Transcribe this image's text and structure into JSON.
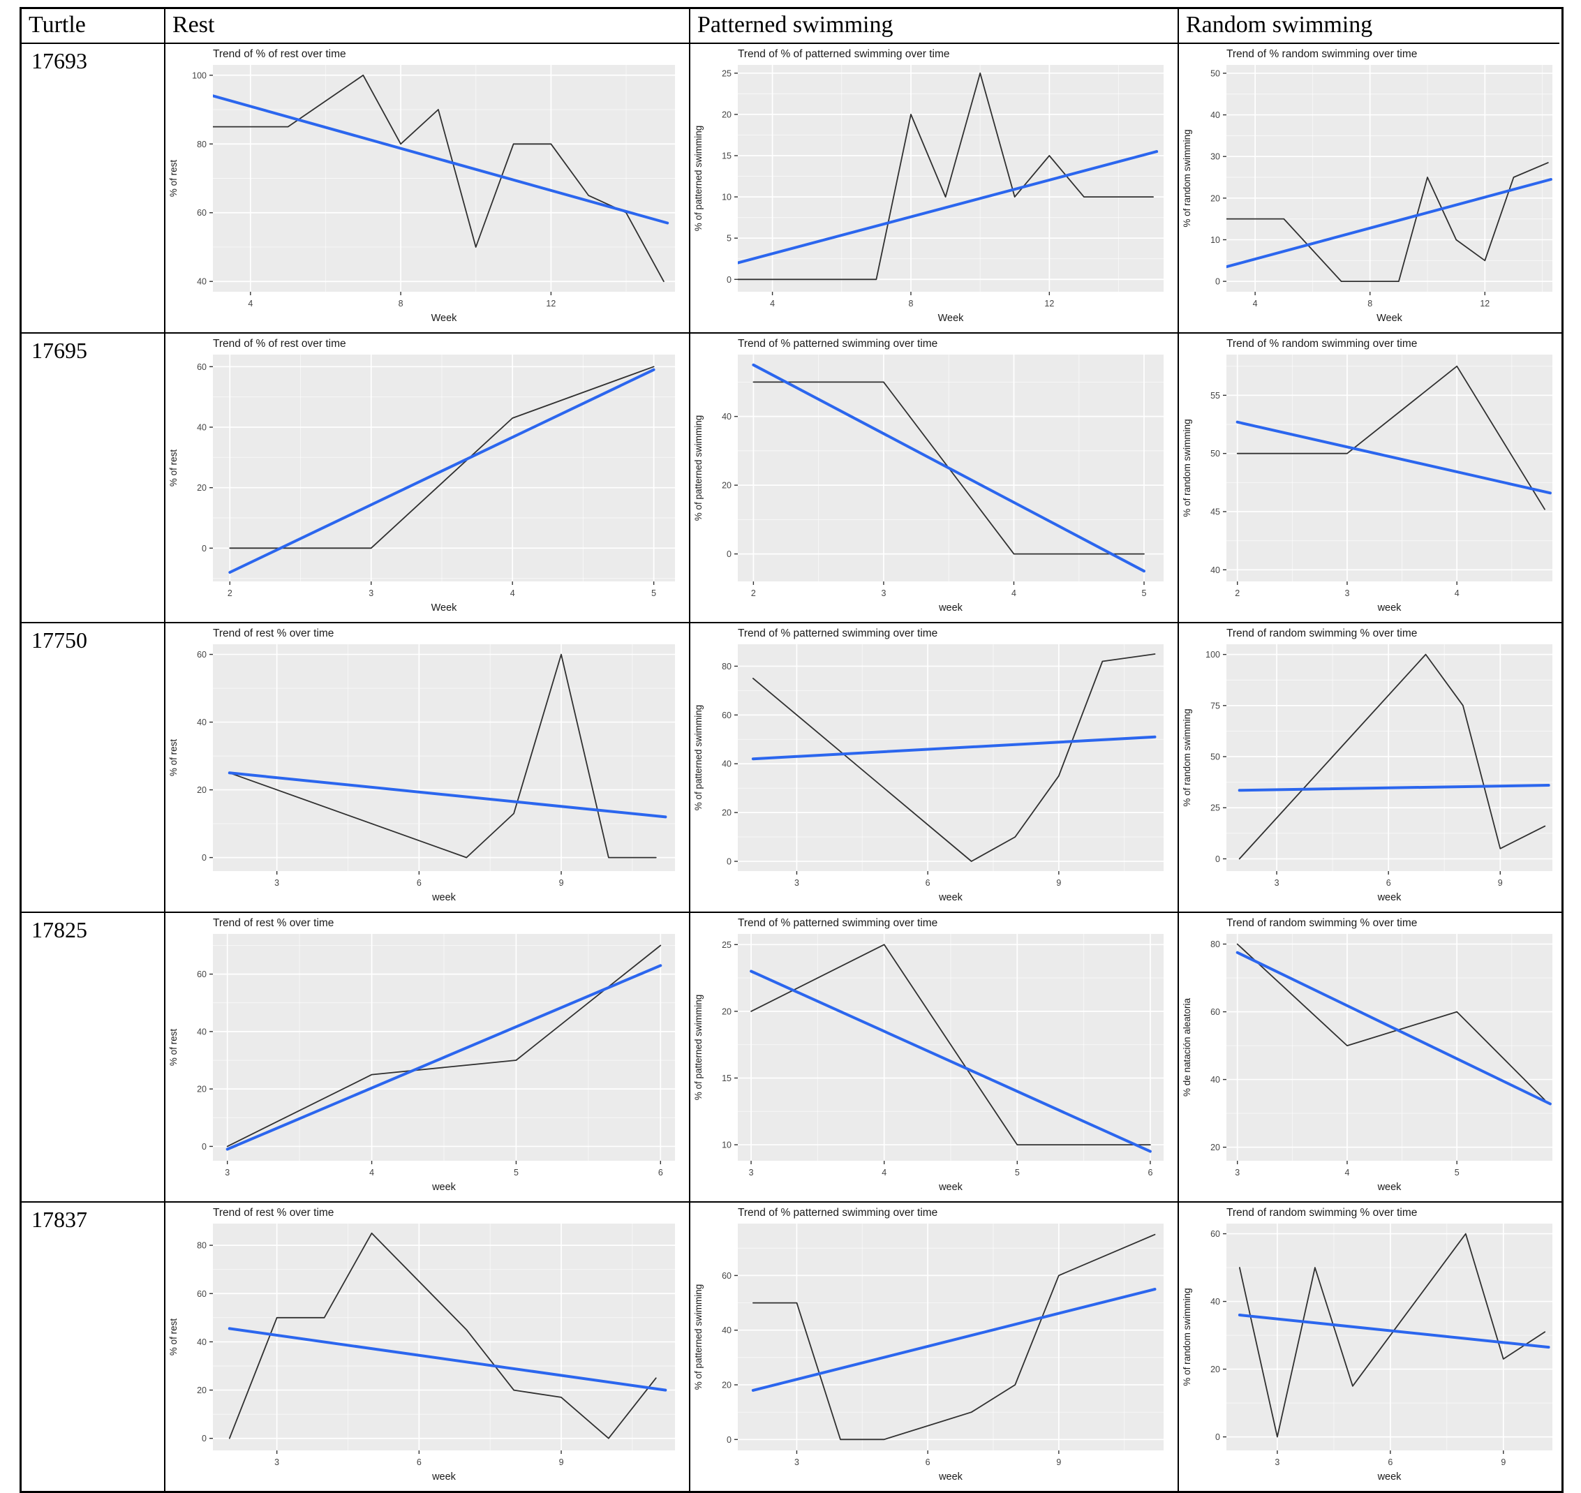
{
  "header": {
    "columns": [
      "Turtle",
      "Rest",
      "Patterned swimming",
      "Random swimming"
    ]
  },
  "colors": {
    "panel": "#ebebeb",
    "grid_major": "#ffffff",
    "grid_minor": "#f5f5f5",
    "data_line": "#303030",
    "trend_line": "#2b66ee",
    "border": "#000000",
    "title_text": "#1a1a1a",
    "tick_text": "#454545"
  },
  "chart_data": [
    {
      "turtle": "17693",
      "column": "Rest",
      "type": "line",
      "title": "Trend of % of rest over time",
      "xlabel": "Week",
      "ylabel": "% of rest",
      "xlim": [
        3,
        15.3
      ],
      "ylim": [
        37,
        103
      ],
      "xticks": [
        4,
        8,
        12
      ],
      "yticks": [
        40,
        60,
        80,
        100
      ],
      "series": [
        {
          "name": "observed",
          "color_key": "data_line",
          "x": [
            3,
            4,
            5,
            7,
            8,
            9,
            10,
            11,
            12,
            13,
            14,
            15
          ],
          "y": [
            85,
            85,
            85,
            100,
            80,
            90,
            50,
            80,
            80,
            65,
            60,
            40
          ]
        },
        {
          "name": "trend",
          "color_key": "trend_line",
          "x": [
            3,
            15.1
          ],
          "y": [
            94,
            57
          ]
        }
      ]
    },
    {
      "turtle": "17693",
      "column": "Patterned swimming",
      "type": "line",
      "title": "Trend of % of patterned swimming over time",
      "xlabel": "Week",
      "ylabel": "% of patterned swimming",
      "xlim": [
        3,
        15.3
      ],
      "ylim": [
        -1.5,
        26
      ],
      "xticks": [
        4,
        8,
        12
      ],
      "yticks": [
        0,
        5,
        10,
        15,
        20,
        25
      ],
      "series": [
        {
          "name": "observed",
          "color_key": "data_line",
          "x": [
            3,
            7,
            8,
            9,
            10,
            11,
            12,
            13,
            15
          ],
          "y": [
            0,
            0,
            20,
            10,
            25,
            10,
            15,
            10,
            10
          ]
        },
        {
          "name": "trend",
          "color_key": "trend_line",
          "x": [
            3,
            15.1
          ],
          "y": [
            2,
            15.5
          ]
        }
      ]
    },
    {
      "turtle": "17693",
      "column": "Random swimming",
      "type": "line",
      "title": "Trend of % random swimming over time",
      "xlabel": "Week",
      "ylabel": "% of random swimming",
      "xlim": [
        3,
        14.35
      ],
      "ylim": [
        -2.5,
        52
      ],
      "xticks": [
        4,
        8,
        12
      ],
      "yticks": [
        0,
        10,
        20,
        30,
        40,
        50
      ],
      "series": [
        {
          "name": "observed",
          "color_key": "data_line",
          "x": [
            3,
            5,
            7,
            9,
            10,
            11,
            12,
            13,
            14.2
          ],
          "y": [
            15,
            15,
            0,
            0,
            25,
            10,
            5,
            25,
            28.5
          ]
        },
        {
          "name": "trend",
          "color_key": "trend_line",
          "x": [
            3,
            14.3
          ],
          "y": [
            3.5,
            24.5
          ]
        }
      ]
    },
    {
      "turtle": "17695",
      "column": "Rest",
      "type": "line",
      "title": "Trend of % of rest over time",
      "xlabel": "Week",
      "ylabel": "% of rest",
      "xlim": [
        1.88,
        5.15
      ],
      "ylim": [
        -11,
        64
      ],
      "xticks": [
        2,
        3,
        4,
        5
      ],
      "yticks": [
        0,
        20,
        40,
        60
      ],
      "series": [
        {
          "name": "observed",
          "color_key": "data_line",
          "x": [
            2,
            3,
            4,
            5
          ],
          "y": [
            0,
            0,
            43,
            60
          ]
        },
        {
          "name": "trend",
          "color_key": "trend_line",
          "x": [
            2,
            5
          ],
          "y": [
            -8,
            59
          ]
        }
      ]
    },
    {
      "turtle": "17695",
      "column": "Patterned swimming",
      "type": "line",
      "title": "Trend of % patterned swimming over time",
      "xlabel": "week",
      "ylabel": "% of patterned swimming",
      "xlim": [
        1.88,
        5.15
      ],
      "ylim": [
        -8,
        58
      ],
      "xticks": [
        2,
        3,
        4,
        5
      ],
      "yticks": [
        0,
        20,
        40
      ],
      "series": [
        {
          "name": "observed",
          "color_key": "data_line",
          "x": [
            2,
            3,
            4,
            5
          ],
          "y": [
            50,
            50,
            0,
            0
          ]
        },
        {
          "name": "trend",
          "color_key": "trend_line",
          "x": [
            2,
            5
          ],
          "y": [
            55,
            -5
          ]
        }
      ]
    },
    {
      "turtle": "17695",
      "column": "Random swimming",
      "type": "line",
      "title": "Trend of % random swimming over time",
      "xlabel": "week",
      "ylabel": "% of random swimming",
      "xlim": [
        1.9,
        4.87
      ],
      "ylim": [
        39,
        58.5
      ],
      "xticks": [
        2,
        3,
        4
      ],
      "yticks": [
        40,
        45,
        50,
        55
      ],
      "series": [
        {
          "name": "observed",
          "color_key": "data_line",
          "x": [
            2,
            3,
            4,
            4.8
          ],
          "y": [
            50,
            50,
            57.5,
            45.2
          ]
        },
        {
          "name": "trend",
          "color_key": "trend_line",
          "x": [
            2,
            4.85
          ],
          "y": [
            52.7,
            46.6
          ]
        }
      ]
    },
    {
      "turtle": "17750",
      "column": "Rest",
      "type": "line",
      "title": "Trend of rest % over time",
      "xlabel": "week",
      "ylabel": "% of rest",
      "xlim": [
        1.65,
        11.4
      ],
      "ylim": [
        -4,
        63
      ],
      "xticks": [
        3,
        6,
        9
      ],
      "yticks": [
        0,
        20,
        40,
        60
      ],
      "series": [
        {
          "name": "observed",
          "color_key": "data_line",
          "x": [
            2,
            7,
            8,
            9,
            10,
            11
          ],
          "y": [
            25,
            0,
            13,
            60,
            0,
            0
          ]
        },
        {
          "name": "trend",
          "color_key": "trend_line",
          "x": [
            2,
            11.2
          ],
          "y": [
            25,
            12
          ]
        }
      ]
    },
    {
      "turtle": "17750",
      "column": "Patterned swimming",
      "type": "line",
      "title": "Trend of % patterned swimming over time",
      "xlabel": "week",
      "ylabel": "% of patterned swimming",
      "xlim": [
        1.65,
        11.4
      ],
      "ylim": [
        -4,
        89
      ],
      "xticks": [
        3,
        6,
        9
      ],
      "yticks": [
        0,
        20,
        40,
        60,
        80
      ],
      "series": [
        {
          "name": "observed",
          "color_key": "data_line",
          "x": [
            2,
            7,
            8,
            9,
            10,
            11.2
          ],
          "y": [
            75,
            0,
            10,
            35,
            82,
            85
          ]
        },
        {
          "name": "trend",
          "color_key": "trend_line",
          "x": [
            2,
            11.2
          ],
          "y": [
            42,
            51
          ]
        }
      ]
    },
    {
      "turtle": "17750",
      "column": "Random swimming",
      "type": "line",
      "title": "Trend of random swimming % over time",
      "xlabel": "week",
      "ylabel": "% of random swimming",
      "xlim": [
        1.65,
        10.4
      ],
      "ylim": [
        -6,
        105
      ],
      "xticks": [
        3,
        6,
        9
      ],
      "yticks": [
        0,
        25,
        50,
        75,
        100
      ],
      "series": [
        {
          "name": "observed",
          "color_key": "data_line",
          "x": [
            2,
            7,
            8,
            9,
            10.2
          ],
          "y": [
            0,
            100,
            75,
            5,
            16
          ]
        },
        {
          "name": "trend",
          "color_key": "trend_line",
          "x": [
            2,
            10.3
          ],
          "y": [
            33.5,
            36
          ]
        }
      ]
    },
    {
      "turtle": "17825",
      "column": "Rest",
      "type": "line",
      "title": "Trend of rest % over time",
      "xlabel": "week",
      "ylabel": "% of rest",
      "xlim": [
        2.9,
        6.1
      ],
      "ylim": [
        -5,
        74
      ],
      "xticks": [
        3,
        4,
        5,
        6
      ],
      "yticks": [
        0,
        20,
        40,
        60
      ],
      "series": [
        {
          "name": "observed",
          "color_key": "data_line",
          "x": [
            3,
            4,
            5,
            6
          ],
          "y": [
            0,
            25,
            30,
            70
          ]
        },
        {
          "name": "trend",
          "color_key": "trend_line",
          "x": [
            3,
            6
          ],
          "y": [
            -1,
            63
          ]
        }
      ]
    },
    {
      "turtle": "17825",
      "column": "Patterned swimming",
      "type": "line",
      "title": "Trend of % patterned swimming over time",
      "xlabel": "week",
      "ylabel": "% of patterned swimming",
      "xlim": [
        2.9,
        6.1
      ],
      "ylim": [
        8.8,
        25.8
      ],
      "xticks": [
        3,
        4,
        5,
        6
      ],
      "yticks": [
        10,
        15,
        20,
        25
      ],
      "series": [
        {
          "name": "observed",
          "color_key": "data_line",
          "x": [
            3,
            4,
            5,
            6
          ],
          "y": [
            20,
            25,
            10,
            10
          ]
        },
        {
          "name": "trend",
          "color_key": "trend_line",
          "x": [
            3,
            6
          ],
          "y": [
            23,
            9.5
          ]
        }
      ]
    },
    {
      "turtle": "17825",
      "column": "Random swimming",
      "type": "line",
      "title": "Trend of random swimming % over time",
      "xlabel": "week",
      "ylabel": "% de natación aleatoria",
      "xlim": [
        2.9,
        5.87
      ],
      "ylim": [
        16,
        83
      ],
      "xticks": [
        3,
        4,
        5
      ],
      "yticks": [
        20,
        40,
        60,
        80
      ],
      "series": [
        {
          "name": "observed",
          "color_key": "data_line",
          "x": [
            3,
            4,
            5,
            5.8
          ],
          "y": [
            80,
            50,
            60,
            34
          ]
        },
        {
          "name": "trend",
          "color_key": "trend_line",
          "x": [
            3,
            5.85
          ],
          "y": [
            77.5,
            32.8
          ]
        }
      ]
    },
    {
      "turtle": "17837",
      "column": "Rest",
      "type": "line",
      "title": "Trend of rest % over time",
      "xlabel": "week",
      "ylabel": "% of rest",
      "xlim": [
        1.65,
        11.4
      ],
      "ylim": [
        -5,
        89
      ],
      "xticks": [
        3,
        6,
        9
      ],
      "yticks": [
        0,
        20,
        40,
        60,
        80
      ],
      "series": [
        {
          "name": "observed",
          "color_key": "data_line",
          "x": [
            2,
            3,
            4,
            5,
            7,
            8,
            9,
            10,
            11
          ],
          "y": [
            0,
            50,
            50,
            85,
            45,
            20,
            17,
            0,
            25
          ]
        },
        {
          "name": "trend",
          "color_key": "trend_line",
          "x": [
            2,
            11.2
          ],
          "y": [
            45.5,
            20
          ]
        }
      ]
    },
    {
      "turtle": "17837",
      "column": "Patterned swimming",
      "type": "line",
      "title": "Trend of % patterned swimming over time",
      "xlabel": "week",
      "ylabel": "% of patterned swimming",
      "xlim": [
        1.65,
        11.4
      ],
      "ylim": [
        -4,
        79
      ],
      "xticks": [
        3,
        6,
        9
      ],
      "yticks": [
        0,
        20,
        40,
        60
      ],
      "series": [
        {
          "name": "observed",
          "color_key": "data_line",
          "x": [
            2,
            3,
            4,
            5,
            7,
            8,
            9,
            11.2
          ],
          "y": [
            50,
            50,
            0,
            0,
            10,
            20,
            60,
            75
          ]
        },
        {
          "name": "trend",
          "color_key": "trend_line",
          "x": [
            2,
            11.2
          ],
          "y": [
            18,
            55
          ]
        }
      ]
    },
    {
      "turtle": "17837",
      "column": "Random swimming",
      "type": "line",
      "title": "Trend of random swimming % over time",
      "xlabel": "week",
      "ylabel": "% of random swimming",
      "xlim": [
        1.65,
        10.3
      ],
      "ylim": [
        -4,
        63
      ],
      "xticks": [
        3,
        6,
        9
      ],
      "yticks": [
        0,
        20,
        40,
        60
      ],
      "series": [
        {
          "name": "observed",
          "color_key": "data_line",
          "x": [
            2,
            3,
            4,
            5,
            8,
            9,
            10.1
          ],
          "y": [
            50,
            0,
            50,
            15,
            60,
            23,
            31
          ]
        },
        {
          "name": "trend",
          "color_key": "trend_line",
          "x": [
            2,
            10.2
          ],
          "y": [
            36,
            26.5
          ]
        }
      ]
    }
  ]
}
